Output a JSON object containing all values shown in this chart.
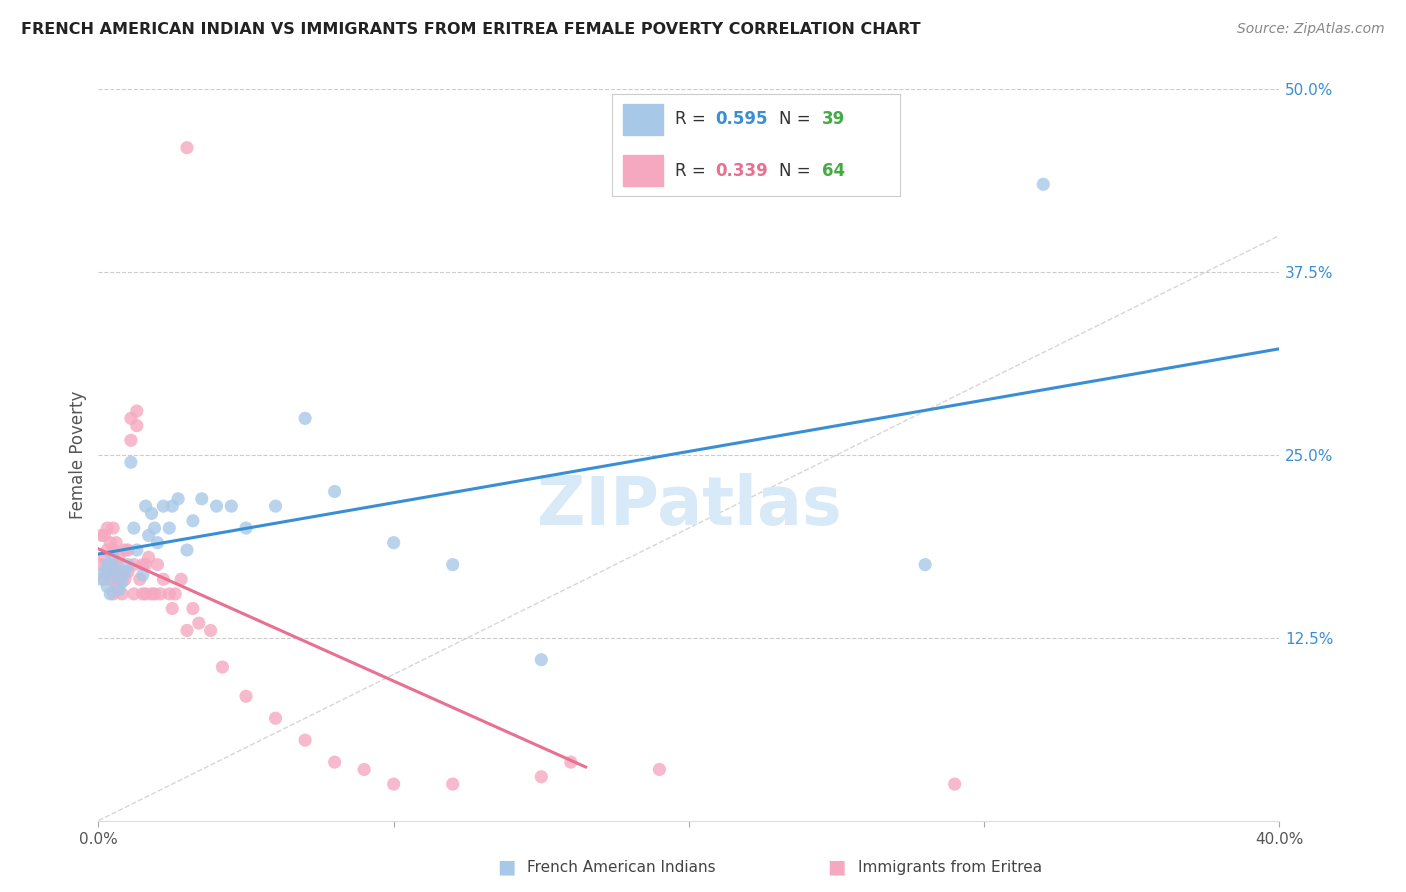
{
  "title": "FRENCH AMERICAN INDIAN VS IMMIGRANTS FROM ERITREA FEMALE POVERTY CORRELATION CHART",
  "source": "Source: ZipAtlas.com",
  "ylabel": "Female Poverty",
  "x_min": 0.0,
  "x_max": 0.4,
  "y_min": 0.0,
  "y_max": 0.5,
  "y_ticks": [
    0.125,
    0.25,
    0.375,
    0.5
  ],
  "y_tick_labels": [
    "12.5%",
    "25.0%",
    "37.5%",
    "50.0%"
  ],
  "x_ticks": [
    0.0,
    0.1,
    0.2,
    0.3,
    0.4
  ],
  "x_tick_labels": [
    "0.0%",
    "",
    "",
    "",
    "40.0%"
  ],
  "series1_color": "#a8c8e8",
  "series2_color": "#f5a8c0",
  "trendline1_color": "#3a8fd4",
  "trendline2_color": "#e87090",
  "diagonal_color": "#c8c8c8",
  "watermark_text": "ZIPatlas",
  "watermark_color": "#d8eaf8",
  "legend_r1": "0.595",
  "legend_n1": "39",
  "legend_r2": "0.339",
  "legend_n2": "64",
  "legend_color_r": "#3a8fd4",
  "legend_color_r2": "#e87090",
  "legend_color_n": "#44aa44",
  "legend_sq1": "#a8c8e8",
  "legend_sq2": "#f5a8c0",
  "bottom_label1": "French American Indians",
  "bottom_label2": "Immigrants from Eritrea",
  "series1_x": [
    0.001,
    0.002,
    0.003,
    0.003,
    0.004,
    0.005,
    0.005,
    0.006,
    0.007,
    0.008,
    0.009,
    0.01,
    0.011,
    0.012,
    0.013,
    0.015,
    0.016,
    0.017,
    0.018,
    0.019,
    0.02,
    0.022,
    0.024,
    0.025,
    0.027,
    0.03,
    0.032,
    0.035,
    0.04,
    0.045,
    0.05,
    0.06,
    0.07,
    0.08,
    0.1,
    0.12,
    0.15,
    0.28,
    0.32
  ],
  "series1_y": [
    0.165,
    0.17,
    0.16,
    0.175,
    0.155,
    0.168,
    0.18,
    0.172,
    0.158,
    0.163,
    0.17,
    0.175,
    0.245,
    0.2,
    0.185,
    0.168,
    0.215,
    0.195,
    0.21,
    0.2,
    0.19,
    0.215,
    0.2,
    0.215,
    0.22,
    0.185,
    0.205,
    0.22,
    0.215,
    0.215,
    0.2,
    0.215,
    0.275,
    0.225,
    0.19,
    0.175,
    0.11,
    0.175,
    0.435
  ],
  "series2_x": [
    0.001,
    0.001,
    0.002,
    0.002,
    0.002,
    0.003,
    0.003,
    0.003,
    0.004,
    0.004,
    0.004,
    0.005,
    0.005,
    0.005,
    0.005,
    0.006,
    0.006,
    0.006,
    0.007,
    0.007,
    0.008,
    0.008,
    0.009,
    0.009,
    0.01,
    0.01,
    0.011,
    0.011,
    0.012,
    0.012,
    0.013,
    0.013,
    0.014,
    0.015,
    0.015,
    0.016,
    0.016,
    0.017,
    0.018,
    0.019,
    0.02,
    0.021,
    0.022,
    0.024,
    0.025,
    0.026,
    0.028,
    0.03,
    0.032,
    0.034,
    0.038,
    0.042,
    0.05,
    0.06,
    0.07,
    0.08,
    0.09,
    0.1,
    0.12,
    0.15,
    0.16,
    0.19,
    0.03,
    0.29
  ],
  "series2_y": [
    0.175,
    0.195,
    0.165,
    0.18,
    0.195,
    0.17,
    0.185,
    0.2,
    0.165,
    0.175,
    0.19,
    0.155,
    0.17,
    0.185,
    0.2,
    0.16,
    0.175,
    0.19,
    0.165,
    0.18,
    0.155,
    0.17,
    0.165,
    0.185,
    0.17,
    0.185,
    0.26,
    0.275,
    0.155,
    0.175,
    0.27,
    0.28,
    0.165,
    0.155,
    0.175,
    0.155,
    0.175,
    0.18,
    0.155,
    0.155,
    0.175,
    0.155,
    0.165,
    0.155,
    0.145,
    0.155,
    0.165,
    0.13,
    0.145,
    0.135,
    0.13,
    0.105,
    0.085,
    0.07,
    0.055,
    0.04,
    0.035,
    0.025,
    0.025,
    0.03,
    0.04,
    0.035,
    0.46,
    0.025
  ],
  "trendline2_x_end": 0.165
}
